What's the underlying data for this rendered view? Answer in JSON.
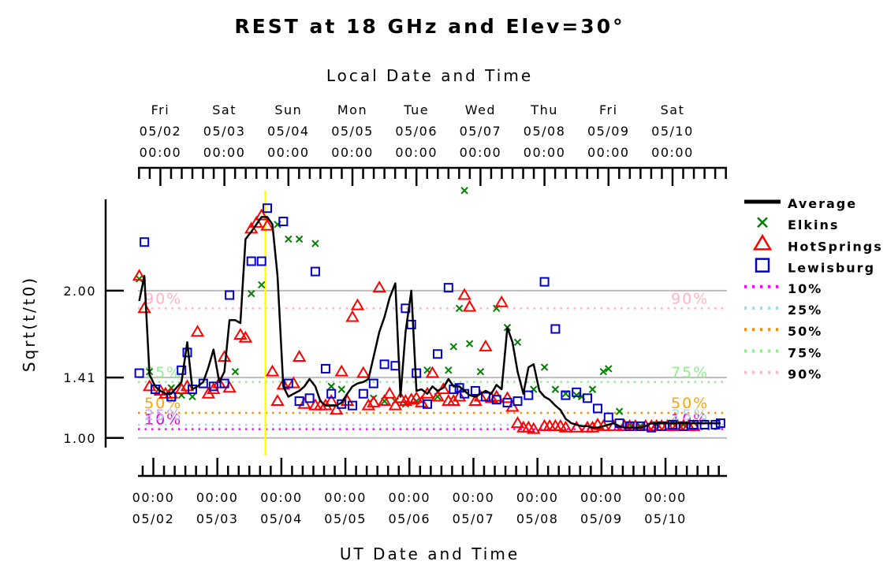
{
  "chart_data": {
    "type": "scatter",
    "title": "REST at 18 GHz and Elev=30°",
    "top_axis_title": "Local Date and Time",
    "bottom_axis_title": "UT Date and Time",
    "ylabel": "Sqrt(t/t0)",
    "x_unit": "days after 05/02 00:00 UT",
    "xlim": [
      -0.35,
      8.85
    ],
    "ylim": [
      0.94,
      2.62
    ],
    "y_ticks": [
      {
        "value": 1.0,
        "label": "1.00"
      },
      {
        "value": 1.41,
        "label": "1.41"
      },
      {
        "value": 2.0,
        "label": "2.00"
      }
    ],
    "top_ticks": [
      {
        "x": 0.0,
        "day": "Fri",
        "date": "05/02",
        "time": "00:00"
      },
      {
        "x": 1.0,
        "day": "Sat",
        "date": "05/03",
        "time": "00:00"
      },
      {
        "x": 2.0,
        "day": "Sun",
        "date": "05/04",
        "time": "00:00"
      },
      {
        "x": 3.0,
        "day": "Mon",
        "date": "05/05",
        "time": "00:00"
      },
      {
        "x": 4.0,
        "day": "Tue",
        "date": "05/06",
        "time": "00:00"
      },
      {
        "x": 5.0,
        "day": "Wed",
        "date": "05/07",
        "time": "00:00"
      },
      {
        "x": 6.0,
        "day": "Thu",
        "date": "05/08",
        "time": "00:00"
      },
      {
        "x": 7.0,
        "day": "Fri",
        "date": "05/09",
        "time": "00:00"
      },
      {
        "x": 8.0,
        "day": "Sat",
        "date": "05/10",
        "time": "00:00"
      }
    ],
    "bottom_ticks": [
      {
        "x": -0.11,
        "time": "00:00",
        "date": "05/02"
      },
      {
        "x": 0.89,
        "time": "00:00",
        "date": "05/03"
      },
      {
        "x": 1.89,
        "time": "00:00",
        "date": "05/04"
      },
      {
        "x": 2.89,
        "time": "00:00",
        "date": "05/05"
      },
      {
        "x": 3.89,
        "time": "00:00",
        "date": "05/06"
      },
      {
        "x": 4.89,
        "time": "00:00",
        "date": "05/07"
      },
      {
        "x": 5.89,
        "time": "00:00",
        "date": "05/08"
      },
      {
        "x": 6.89,
        "time": "00:00",
        "date": "05/09"
      },
      {
        "x": 7.89,
        "time": "00:00",
        "date": "05/10"
      }
    ],
    "marker_line": {
      "x": 1.64,
      "color": "#ffff00"
    },
    "percentile_lines": [
      {
        "label": "10%",
        "value": 1.06,
        "color": "#ff00ff",
        "left_text_color": "#ee00ee",
        "right_text_color": "#ee00ee"
      },
      {
        "label": "25%",
        "value": 1.09,
        "color": "#add8e6",
        "left_text_color": "#c8a8ff",
        "right_text_color": "#add8e6"
      },
      {
        "label": "50%",
        "value": 1.17,
        "color": "#ff8c00",
        "left_text_color": "#ffa500",
        "right_text_color": "#ffa500"
      },
      {
        "label": "75%",
        "value": 1.38,
        "color": "#90ee90",
        "left_text_color": "#90ee90",
        "right_text_color": "#90ee90"
      },
      {
        "label": "90%",
        "value": 1.88,
        "color": "#ffb6c1",
        "left_text_color": "#ffb6c1",
        "right_text_color": "#ffb6c1"
      }
    ],
    "left_percent_labels": [
      "10%",
      "25%",
      "50%",
      "75%",
      "90%"
    ],
    "right_percent_labels": [
      "10%",
      "25%",
      "50%",
      "75%",
      "90%"
    ],
    "legend_position": "right",
    "series": [
      {
        "name": "Average",
        "marker": "line",
        "color": "#000000",
        "x": [
          -0.33,
          -0.25,
          -0.17,
          -0.08,
          0,
          0.08,
          0.17,
          0.25,
          0.33,
          0.42,
          0.5,
          0.58,
          0.67,
          0.75,
          0.83,
          0.92,
          1,
          1.08,
          1.17,
          1.25,
          1.33,
          1.42,
          1.5,
          1.58,
          1.67,
          1.75,
          1.83,
          1.92,
          2,
          2.08,
          2.17,
          2.25,
          2.33,
          2.42,
          2.5,
          2.58,
          2.67,
          2.75,
          2.83,
          2.92,
          3,
          3.08,
          3.17,
          3.25,
          3.33,
          3.42,
          3.5,
          3.58,
          3.67,
          3.75,
          3.83,
          3.92,
          4,
          4.08,
          4.17,
          4.25,
          4.33,
          4.42,
          4.5,
          4.58,
          4.67,
          4.75,
          4.83,
          4.92,
          5,
          5.08,
          5.17,
          5.25,
          5.33,
          5.42,
          5.5,
          5.58,
          5.67,
          5.75,
          5.83,
          5.92,
          6,
          6.08,
          6.17,
          6.25,
          6.33,
          6.42,
          6.5,
          6.58,
          6.67,
          6.75,
          6.83,
          6.92,
          7,
          7.08,
          7.17,
          7.25,
          7.33,
          7.42,
          7.5,
          7.58,
          7.67,
          7.75,
          7.83,
          7.92,
          8,
          8.08,
          8.17,
          8.25,
          8.33,
          8.42,
          8.5,
          8.58,
          8.67,
          8.75
        ],
        "y": [
          1.93,
          2.1,
          1.43,
          1.35,
          1.32,
          1.3,
          1.3,
          1.34,
          1.38,
          1.65,
          1.33,
          1.35,
          1.38,
          1.48,
          1.6,
          1.38,
          1.45,
          1.8,
          1.8,
          1.78,
          2.35,
          2.4,
          2.45,
          2.5,
          2.5,
          2.45,
          2.1,
          1.35,
          1.28,
          1.3,
          1.32,
          1.35,
          1.4,
          1.35,
          1.25,
          1.22,
          1.22,
          1.22,
          1.24,
          1.3,
          1.35,
          1.37,
          1.38,
          1.4,
          1.55,
          1.72,
          1.82,
          1.95,
          2.05,
          1.28,
          1.72,
          2.0,
          1.32,
          1.33,
          1.3,
          1.35,
          1.32,
          1.34,
          1.4,
          1.35,
          1.35,
          1.32,
          1.29,
          1.28,
          1.3,
          1.32,
          1.3,
          1.36,
          1.33,
          1.75,
          1.65,
          1.45,
          1.3,
          1.48,
          1.5,
          1.32,
          1.28,
          1.26,
          1.22,
          1.19,
          1.13,
          1.1,
          1.09,
          1.08,
          1.08,
          1.07,
          1.07,
          1.08,
          1.09,
          1.1,
          1.08,
          1.07,
          1.07,
          1.07,
          1.07,
          1.08,
          1.1,
          1.1,
          1.1,
          1.1,
          1.1,
          1.1,
          1.1,
          1.1,
          1.1,
          1.1,
          1.1,
          1.1,
          1.1,
          1.1
        ]
      },
      {
        "name": "Elkins",
        "marker": "x",
        "color": "#008000",
        "x": [
          -0.33,
          -0.17,
          0.17,
          0.33,
          0.5,
          1.17,
          1.42,
          1.58,
          1.83,
          2.0,
          2.17,
          2.42,
          2.67,
          2.83,
          3.33,
          3.5,
          3.67,
          3.83,
          4.0,
          4.17,
          4.33,
          4.5,
          4.58,
          4.67,
          4.75,
          4.83,
          5.0,
          5.25,
          5.42,
          5.58,
          5.83,
          6.0,
          6.17,
          6.33,
          6.5,
          6.58,
          6.75,
          6.92,
          7.0,
          7.17,
          7.33,
          7.5,
          7.75,
          8.0,
          8.17
        ],
        "y": [
          2.08,
          1.45,
          1.34,
          1.29,
          1.28,
          1.45,
          1.98,
          2.04,
          2.45,
          2.35,
          2.35,
          2.32,
          1.35,
          1.33,
          1.27,
          1.25,
          1.25,
          1.23,
          1.25,
          1.46,
          1.28,
          1.46,
          1.62,
          1.88,
          2.68,
          1.64,
          1.45,
          1.88,
          1.75,
          1.65,
          1.33,
          1.48,
          1.33,
          1.3,
          1.29,
          1.28,
          1.33,
          1.45,
          1.47,
          1.18,
          1.09,
          1.08,
          1.09,
          1.1,
          1.09
        ]
      },
      {
        "name": "HotSprings",
        "marker": "triangle",
        "color": "#ff0000",
        "x": [
          -0.33,
          -0.25,
          -0.17,
          0,
          0.08,
          0.17,
          0.33,
          0.42,
          0.58,
          0.75,
          0.83,
          0.92,
          1.0,
          1.08,
          1.25,
          1.33,
          1.42,
          1.5,
          1.58,
          1.67,
          1.75,
          1.83,
          1.92,
          2.08,
          2.17,
          2.25,
          2.42,
          2.5,
          2.58,
          2.67,
          2.75,
          2.83,
          2.92,
          3.0,
          3.08,
          3.17,
          3.25,
          3.33,
          3.42,
          3.5,
          3.58,
          3.67,
          3.75,
          3.83,
          3.92,
          4.0,
          4.08,
          4.17,
          4.25,
          4.33,
          4.42,
          4.5,
          4.58,
          4.67,
          4.75,
          4.83,
          4.92,
          5.0,
          5.08,
          5.17,
          5.25,
          5.33,
          5.42,
          5.5,
          5.58,
          5.67,
          5.75,
          5.83,
          6.0,
          6.08,
          6.17,
          6.25,
          6.33,
          6.5,
          6.67,
          6.75,
          6.83,
          6.92,
          7.08,
          7.25,
          7.33,
          7.42,
          7.58,
          7.67,
          7.75,
          7.83,
          7.92,
          8.0,
          8.08,
          8.17,
          8.25,
          8.33
        ],
        "y": [
          2.1,
          1.88,
          1.35,
          1.32,
          1.3,
          1.3,
          1.33,
          1.35,
          1.72,
          1.3,
          1.33,
          1.37,
          1.55,
          1.34,
          1.7,
          1.68,
          2.42,
          2.46,
          2.51,
          2.44,
          1.45,
          1.25,
          1.36,
          1.37,
          1.55,
          1.23,
          1.22,
          1.22,
          1.22,
          1.25,
          1.19,
          1.45,
          1.25,
          1.82,
          1.9,
          1.44,
          1.22,
          1.24,
          2.02,
          1.25,
          1.3,
          1.22,
          1.27,
          1.25,
          1.26,
          1.27,
          1.24,
          1.3,
          1.44,
          1.28,
          1.33,
          1.25,
          1.25,
          1.28,
          1.97,
          1.89,
          1.25,
          1.28,
          1.62,
          1.27,
          1.28,
          1.92,
          1.27,
          1.21,
          1.1,
          1.07,
          1.07,
          1.06,
          1.08,
          1.08,
          1.08,
          1.08,
          1.07,
          1.07,
          1.07,
          1.07,
          1.09,
          1.08,
          1.08,
          1.08,
          1.08,
          1.08,
          1.08,
          1.08,
          1.08,
          1.08,
          1.08,
          1.08,
          1.08,
          1.08,
          1.08,
          1.08
        ]
      },
      {
        "name": "Lewisburg",
        "marker": "square",
        "color": "#0000cc",
        "x": [
          -0.33,
          -0.25,
          -0.08,
          0.17,
          0.33,
          0.42,
          0.5,
          0.67,
          0.83,
          1.0,
          1.08,
          1.42,
          1.58,
          1.67,
          1.92,
          2.0,
          2.17,
          2.33,
          2.42,
          2.58,
          2.67,
          2.83,
          3.0,
          3.17,
          3.33,
          3.5,
          3.67,
          3.83,
          3.92,
          4.0,
          4.17,
          4.33,
          4.5,
          4.58,
          4.67,
          4.75,
          4.92,
          5.08,
          5.25,
          5.42,
          5.58,
          5.75,
          6.0,
          6.17,
          6.33,
          6.5,
          6.67,
          6.83,
          7.0,
          7.17,
          7.33,
          7.5,
          7.67,
          7.83,
          8.0,
          8.17,
          8.33,
          8.5,
          8.67,
          8.75
        ],
        "y": [
          1.44,
          2.33,
          1.33,
          1.28,
          1.46,
          1.58,
          1.33,
          1.37,
          1.35,
          1.37,
          1.97,
          2.2,
          2.2,
          2.56,
          2.47,
          1.37,
          1.25,
          1.27,
          2.13,
          1.47,
          1.3,
          1.23,
          1.22,
          1.3,
          1.37,
          1.5,
          1.49,
          1.88,
          1.77,
          1.44,
          1.23,
          1.57,
          2.02,
          1.33,
          1.34,
          1.3,
          1.32,
          1.28,
          1.26,
          1.24,
          1.25,
          1.29,
          2.06,
          1.74,
          1.29,
          1.31,
          1.27,
          1.2,
          1.14,
          1.1,
          1.08,
          1.08,
          1.07,
          1.08,
          1.09,
          1.08,
          1.09,
          1.09,
          1.09,
          1.1
        ]
      }
    ]
  }
}
